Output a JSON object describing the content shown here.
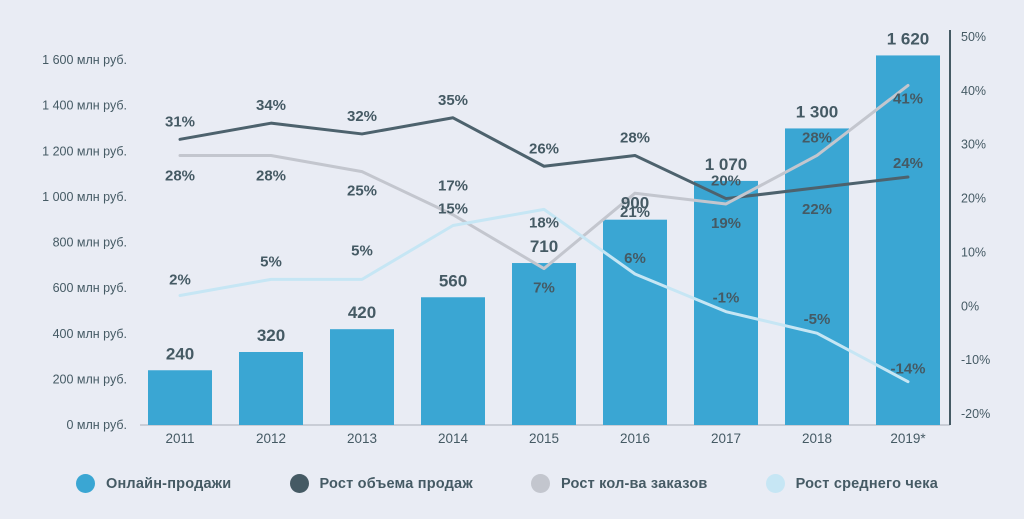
{
  "background_color": "#e9ecf4",
  "text_color": "#455a64",
  "chart_data": {
    "type": "bar+line combo",
    "categories": [
      "2011",
      "2012",
      "2013",
      "2014",
      "2015",
      "2016",
      "2017",
      "2018",
      "2019*"
    ],
    "left_axis": {
      "title": "млн руб.",
      "values": [
        0,
        200,
        400,
        600,
        800,
        1000,
        1200,
        1400,
        1600
      ],
      "tick_labels": [
        "0 млн руб.",
        "200 млн руб.",
        "400 млн руб.",
        "600 млн руб.",
        "800 млн руб.",
        "1 000 млн руб.",
        "1 200 млн руб.",
        "1 400 млн руб.",
        "1 600 млн руб."
      ],
      "max": 1600
    },
    "right_axis": {
      "values": [
        -20,
        -10,
        0,
        10,
        20,
        30,
        40,
        50
      ],
      "tick_labels": [
        "-20%",
        "-10%",
        "0%",
        "10%",
        "20%",
        "30%",
        "40%",
        "50%"
      ],
      "min": -20,
      "max": 50
    },
    "axis": {
      "baseline_color": "#c9cdd6",
      "right_line_color": "#455a64"
    },
    "bars": {
      "name": "Онлайн-продажи",
      "color": "#3aa6d3",
      "values": [
        240,
        320,
        420,
        560,
        710,
        900,
        1070,
        1300,
        1620
      ],
      "labels": [
        "240",
        "320",
        "420",
        "560",
        "710",
        "900",
        "1 070",
        "1 300",
        "1 620"
      ]
    },
    "lines": [
      {
        "name": "Рост объема продаж",
        "color": "#4d626d",
        "values": [
          31,
          34,
          32,
          35,
          26,
          28,
          20,
          22,
          24
        ],
        "labels": [
          "31%",
          "34%",
          "32%",
          "35%",
          "26%",
          "28%",
          "20%",
          "22%",
          "24%"
        ]
      },
      {
        "name": "Рост кол-ва заказов",
        "color": "#c3c6ce",
        "values": [
          28,
          28,
          25,
          17,
          7,
          21,
          19,
          28,
          41
        ],
        "labels": [
          "28%",
          "28%",
          "25%",
          "17%",
          "7%",
          "21%",
          "19%",
          "28%",
          "41%"
        ]
      },
      {
        "name": "Рост среднего чека",
        "color": "#c6e6f4",
        "values": [
          2,
          5,
          5,
          15,
          18,
          6,
          -1,
          -5,
          -14
        ],
        "labels": [
          "2%",
          "5%",
          "5%",
          "15%",
          "18%",
          "6%",
          "-1%",
          "-5%",
          "-14%"
        ]
      }
    ]
  },
  "legend": [
    {
      "label": "Онлайн-продажи",
      "color": "#3aa6d3"
    },
    {
      "label": "Рост объема продаж",
      "color": "#455a64"
    },
    {
      "label": "Рост кол-ва заказов",
      "color": "#c3c6ce"
    },
    {
      "label": "Рост среднего чека",
      "color": "#c6e6f4"
    }
  ]
}
